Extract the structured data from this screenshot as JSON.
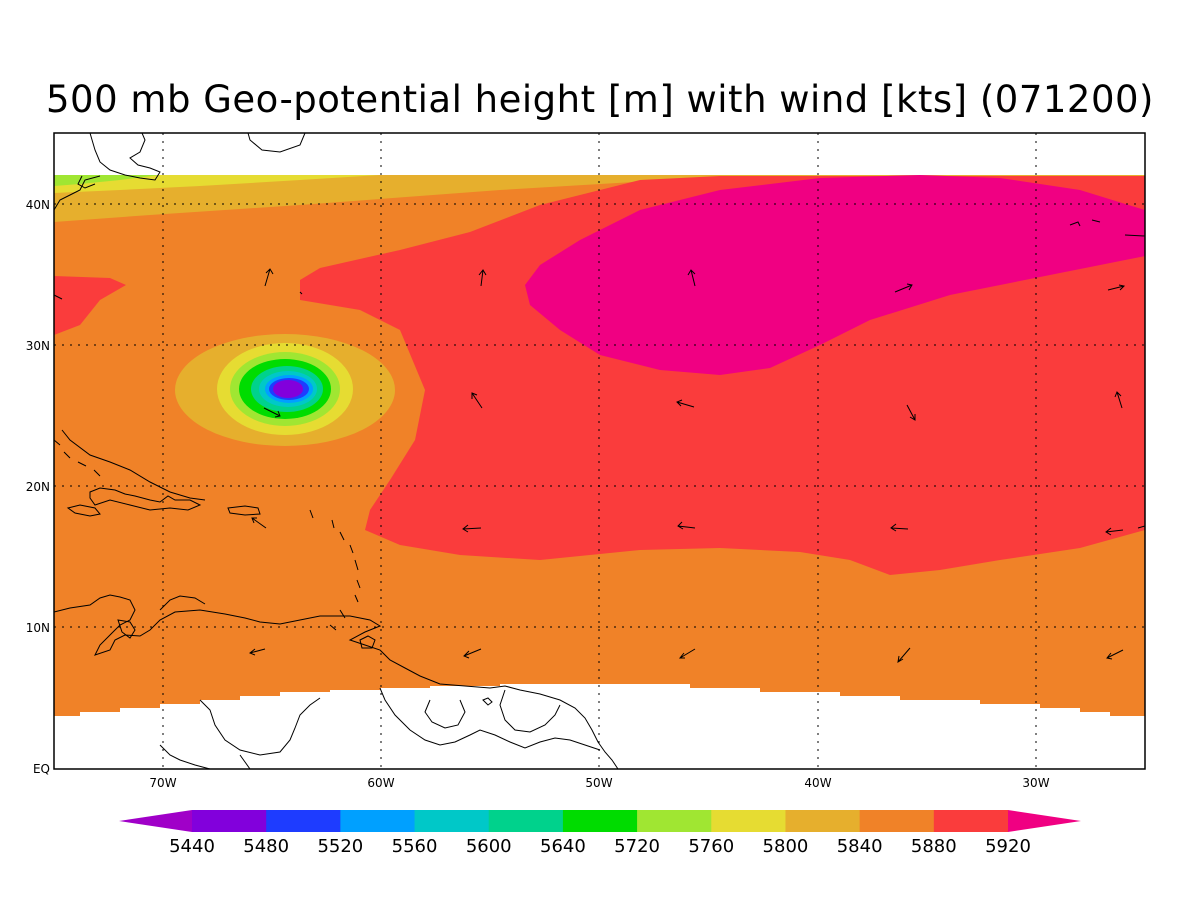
{
  "title": "500 mb Geo-potential height [m] with wind [kts] (071200)",
  "map": {
    "lon_labels": [
      "70W",
      "60W",
      "50W",
      "40W",
      "30W"
    ],
    "lat_labels": [
      "40N",
      "30N",
      "20N",
      "10N",
      "EQ"
    ],
    "lon_values": [
      -70,
      -60,
      -50,
      -40,
      -30
    ],
    "lat_values": [
      40,
      30,
      20,
      10,
      0
    ],
    "lon_range": [
      -75,
      -25
    ],
    "lat_range": [
      0,
      45
    ],
    "grid": "dotted"
  },
  "colorbar": {
    "labels": [
      "5440",
      "5480",
      "5520",
      "5560",
      "5600",
      "5640",
      "5720",
      "5760",
      "5800",
      "5840",
      "5880",
      "5920"
    ],
    "colors": [
      "#a000c8",
      "#8200dc",
      "#1e3cff",
      "#00a0ff",
      "#00c8c8",
      "#00d28c",
      "#00dc00",
      "#a0e632",
      "#e6dc32",
      "#e6af2d",
      "#f08228",
      "#fa3c3c",
      "#f00082"
    ]
  },
  "fill_colors": {
    "c5840": "#e6af2d",
    "c5880": "#f08228",
    "c5920": "#fa3c3c",
    "c5960": "#f00082",
    "c5800": "#e6dc32",
    "c5760": "#a0e632",
    "c5720": "#00dc00",
    "c5640": "#00d28c",
    "c5600": "#00c8c8",
    "c5560": "#00a0ff",
    "c5520": "#1e3cff",
    "c5480": "#8200dc"
  }
}
